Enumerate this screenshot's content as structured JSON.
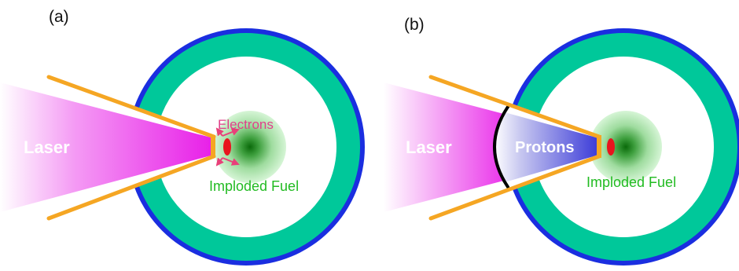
{
  "panels": [
    {
      "id": "a",
      "label": "(a)",
      "laser_label": "Laser",
      "electrons_label": "Electrons",
      "fuel_label": "Imploded Fuel"
    },
    {
      "id": "b",
      "label": "(b)",
      "laser_label": "Laser",
      "protons_label": "Protons",
      "fuel_label": "Imploded Fuel"
    }
  ],
  "colors": {
    "shell_blue": "#1a2ee0",
    "ablator_green": "#00c89a",
    "cone_orange": "#f5a623",
    "laser_magenta": "#e81ee8",
    "fuel_core": "#0a6a0a",
    "fuel_glow": "#bff0bf",
    "electron_arrow": "#e8407a",
    "protons_blue": "#3a3ad8",
    "spot_red": "#e8141e"
  }
}
